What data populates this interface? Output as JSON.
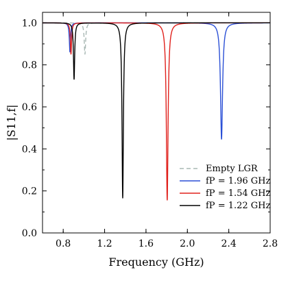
{
  "chart_data": {
    "type": "line",
    "xlabel": "Frequency (GHz)",
    "ylabel": "|S11,f|",
    "xlim": [
      0.6,
      2.8
    ],
    "ylim": [
      0.0,
      1.05
    ],
    "xticks": [
      "0.8",
      "1.2",
      "1.6",
      "2.0",
      "2.4",
      "2.8"
    ],
    "yticks": [
      "0.0",
      "0.2",
      "0.4",
      "0.6",
      "0.8",
      "1.0"
    ],
    "grid": false,
    "legend_position": "bottom-right",
    "series": [
      {
        "name": "Empty LGR",
        "color": "#a9b8b4",
        "dash": "dashed",
        "resonances": [
          {
            "f0": 1.01,
            "min": 0.85,
            "width": 0.008
          }
        ]
      },
      {
        "name": "fP = 1.96 GHz",
        "color": "#2a4fd6",
        "dash": "solid",
        "resonances": [
          {
            "f0": 0.865,
            "min": 0.86,
            "width": 0.007
          },
          {
            "f0": 2.33,
            "min": 0.445,
            "width": 0.012
          }
        ]
      },
      {
        "name": "fP = 1.54 GHz",
        "color": "#e0201b",
        "dash": "solid",
        "resonances": [
          {
            "f0": 0.875,
            "min": 0.85,
            "width": 0.007
          },
          {
            "f0": 1.805,
            "min": 0.155,
            "width": 0.01
          }
        ]
      },
      {
        "name": "fP = 1.22 GHz",
        "color": "#000000",
        "dash": "solid",
        "resonances": [
          {
            "f0": 0.905,
            "min": 0.73,
            "width": 0.007
          },
          {
            "f0": 1.375,
            "min": 0.165,
            "width": 0.008
          }
        ]
      }
    ]
  }
}
